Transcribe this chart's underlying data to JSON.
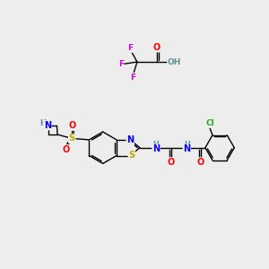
{
  "background_color": "#ededee",
  "fig_width": 3.0,
  "fig_height": 3.0,
  "dpi": 100,
  "atom_colors": {
    "C": "#000000",
    "H": "#5a9090",
    "N": "#0000ff",
    "O": "#ff0000",
    "S": "#bbaa00",
    "F": "#dd00dd",
    "Cl": "#22aa22"
  },
  "bond_color": "#000000",
  "bond_width": 1.0
}
